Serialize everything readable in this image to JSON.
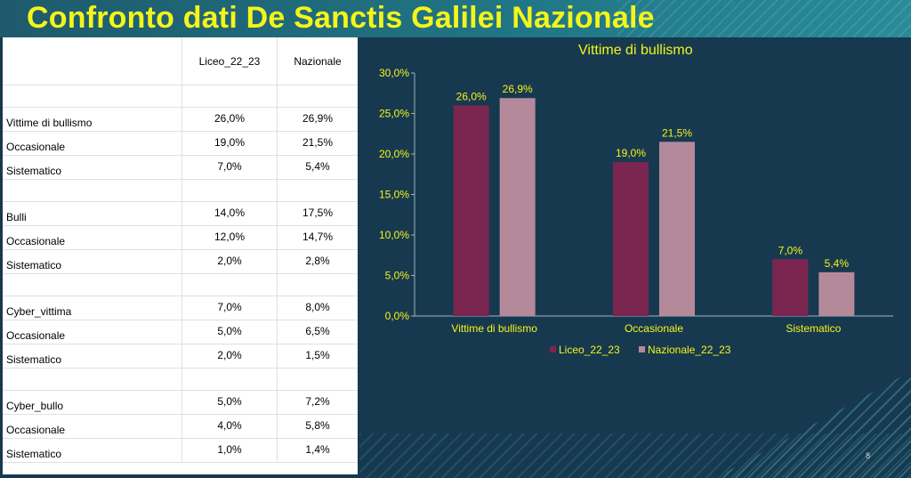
{
  "slide": {
    "title": "Confronto dati De Sanctis Galilei Nazionale",
    "page_number": "8"
  },
  "table": {
    "headers": [
      "",
      "Liceo_22_23",
      "Nazionale"
    ],
    "rows": [
      {
        "type": "gap"
      },
      {
        "type": "row",
        "label": "Vittime di bullismo",
        "liceo": "26,0%",
        "nazionale": "26,9%"
      },
      {
        "type": "row",
        "label": "Occasionale",
        "liceo": "19,0%",
        "nazionale": "21,5%"
      },
      {
        "type": "row",
        "label": "Sistematico",
        "liceo": "7,0%",
        "nazionale": "5,4%"
      },
      {
        "type": "gap"
      },
      {
        "type": "row",
        "label": "Bulli",
        "liceo": "14,0%",
        "nazionale": "17,5%"
      },
      {
        "type": "row",
        "label": "Occasionale",
        "liceo": "12,0%",
        "nazionale": "14,7%"
      },
      {
        "type": "row",
        "label": "Sistematico",
        "liceo": "2,0%",
        "nazionale": "2,8%"
      },
      {
        "type": "gap"
      },
      {
        "type": "row",
        "label": "Cyber_vittima",
        "liceo": "7,0%",
        "nazionale": "8,0%"
      },
      {
        "type": "row",
        "label": "Occasionale",
        "liceo": "5,0%",
        "nazionale": "6,5%"
      },
      {
        "type": "row",
        "label": "Sistematico",
        "liceo": "2,0%",
        "nazionale": "1,5%"
      },
      {
        "type": "gap"
      },
      {
        "type": "row",
        "label": "Cyber_bullo",
        "liceo": "5,0%",
        "nazionale": "7,2%"
      },
      {
        "type": "row",
        "label": "Occasionale",
        "liceo": "4,0%",
        "nazionale": "5,8%"
      },
      {
        "type": "row",
        "label": "Sistematico",
        "liceo": "1,0%",
        "nazionale": "1,4%"
      }
    ]
  },
  "chart_data": {
    "type": "bar",
    "title": "Vittime di bullismo",
    "categories": [
      "Vittime di bullismo",
      "Occasionale",
      "Sistematico"
    ],
    "series": [
      {
        "name": "Liceo_22_23",
        "values": [
          26.0,
          19.0,
          7.0
        ],
        "labels": [
          "26,0%",
          "19,0%",
          "7,0%"
        ],
        "color": "#7b2651"
      },
      {
        "name": "Nazionale_22_23",
        "values": [
          26.9,
          21.5,
          5.4
        ],
        "labels": [
          "26,9%",
          "21,5%",
          "5,4%"
        ],
        "color": "#b48a9a"
      }
    ],
    "ylim": [
      0,
      30
    ],
    "yticks": [
      0,
      5,
      10,
      15,
      20,
      25,
      30
    ],
    "ytick_labels": [
      "0,0%",
      "5,0%",
      "10,0%",
      "15,0%",
      "20,0%",
      "25,0%",
      "30,0%"
    ],
    "legend_position": "bottom",
    "grid": false,
    "text_color": "#f5f51a",
    "axis_color": "#9fb4c2",
    "background": "#17394f"
  },
  "colors": {
    "title": "#f5f51a",
    "background": "#17394f"
  }
}
